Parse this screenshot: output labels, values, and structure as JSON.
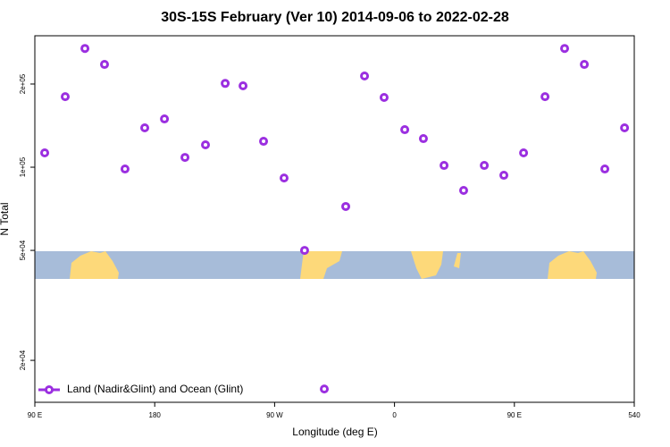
{
  "chart_data": {
    "type": "scatter",
    "title": "30S-15S February (Ver 10)   2014-09-06 to 2022-02-28",
    "x_label": "Longitude (deg E)",
    "y_label": "N Total",
    "log_y": true,
    "legend": "bottom-left",
    "xlim": [
      90,
      540
    ],
    "ylim": [
      14100,
      299000
    ],
    "xticks": [
      {
        "value": 90,
        "label": "90 E"
      },
      180,
      {
        "value": 270,
        "label": "90 W"
      },
      {
        "value": 360,
        "label": "0"
      },
      {
        "value": 450,
        "label": "90 E"
      },
      540
    ],
    "yticks": [
      {
        "value": 20000,
        "label": "2e+04"
      },
      {
        "value": 50000,
        "label": "5e+04"
      },
      {
        "value": 100000,
        "label": "1e+05"
      },
      {
        "value": 200000,
        "label": "2e+05"
      }
    ],
    "series": [
      {
        "name": "Land (Nadir&Glint) and Ocean (Glint)",
        "color": "#9b2fe0",
        "x": [
          97.4,
          112.8,
          127.6,
          142.3,
          157.7,
          172.5,
          187.3,
          202.7,
          218.1,
          232.9,
          246.3,
          261.7,
          277.1,
          292.5,
          307.3,
          323.4,
          337.5,
          352.2,
          367.7,
          381.7,
          397.2,
          411.9,
          427.4,
          442.1,
          456.9,
          473,
          487.7,
          502.5,
          517.9,
          532.7
        ],
        "values": [
          112700,
          180000,
          269000,
          235500,
          98500,
          138800,
          149500,
          108500,
          120500,
          201000,
          197000,
          124100,
          91400,
          50000,
          15750,
          72100,
          213800,
          178800,
          136700,
          126900,
          101500,
          82400,
          101500,
          93500,
          112700,
          180000,
          269000,
          235500,
          98500,
          138800
        ]
      }
    ]
  }
}
